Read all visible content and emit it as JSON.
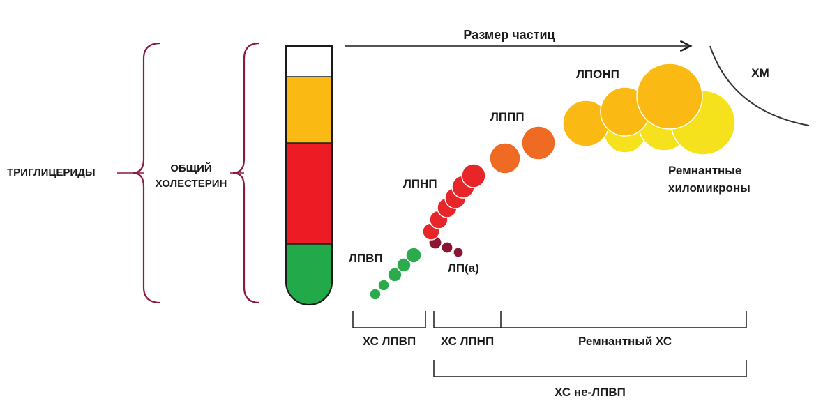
{
  "labels": {
    "triglycerides": "ТРИГЛИЦЕРИДЫ",
    "total_cholesterol_line1": "ОБЩИЙ",
    "total_cholesterol_line2": "ХОЛЕСТЕРИН",
    "particle_size": "Размер частиц",
    "chylomicrons": "ХМ",
    "vldl": "ЛПОНП",
    "idl": "ЛППП",
    "ldl": "ЛПНП",
    "lpa": "ЛП(а)",
    "hdl": "ЛПВП",
    "remnant_line1": "Ремнантные",
    "remnant_line2": "хиломикроны",
    "hdl_c": "ХС ЛПВП",
    "ldl_c": "ХС ЛПНП",
    "remnant_c": "Ремнантный ХС",
    "non_hdl_c": "ХС не-ЛПВП"
  },
  "colors": {
    "tube_top": "#ffffff",
    "tube_orange": "#fbb913",
    "tube_red": "#ed1c24",
    "tube_green": "#22aa4a",
    "hdl": "#2bab4c",
    "lpa": "#8b1532",
    "ldl": "#e8262a",
    "idl": "#ef6a23",
    "vldl": "#fbb913",
    "remnant": "#f5e21c",
    "brace": "#8b1a3d"
  }
}
